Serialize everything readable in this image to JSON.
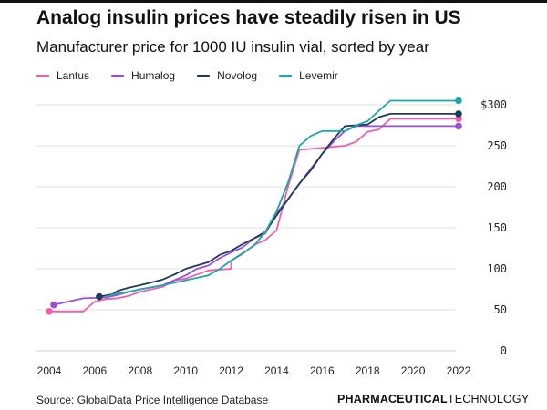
{
  "header": {
    "title": "Analog insulin prices have steadily risen in US",
    "subtitle": "Manufacturer price for 1000 IU insulin vial, sorted by year"
  },
  "footer": {
    "source": "Source: GlobalData Price Intelligence Database",
    "brand_bold": "PHARMACEUTICAL",
    "brand_light": "TECHNOLOGY"
  },
  "chart_data": {
    "type": "line",
    "title": "Analog insulin prices have steadily risen in US",
    "subtitle": "Manufacturer price for 1000 IU insulin vial, sorted by year",
    "xlim": [
      2004,
      2022
    ],
    "ylim": [
      0,
      300
    ],
    "x_ticks": [
      2004,
      2006,
      2008,
      2010,
      2012,
      2014,
      2016,
      2018,
      2020,
      2022
    ],
    "y_ticks": [
      0,
      50,
      100,
      150,
      200,
      250,
      300
    ],
    "y_tick_labels": [
      "0",
      "50",
      "100",
      "150",
      "200",
      "250",
      "$300"
    ],
    "grid": "horizontal",
    "legend_position": "top-left",
    "series": [
      {
        "name": "Lantus",
        "color": "#ee5fae",
        "points": [
          [
            2004,
            48
          ],
          [
            2005.5,
            48
          ],
          [
            2006,
            60
          ],
          [
            2006.5,
            63
          ],
          [
            2007,
            64
          ],
          [
            2007.5,
            67
          ],
          [
            2008,
            72
          ],
          [
            2009,
            78
          ],
          [
            2009.5,
            86
          ],
          [
            2010,
            88
          ],
          [
            2011,
            98
          ],
          [
            2012,
            100
          ],
          [
            2012,
            110
          ],
          [
            2012.5,
            118
          ],
          [
            2013,
            129
          ],
          [
            2013.5,
            135
          ],
          [
            2014,
            147
          ],
          [
            2014.5,
            200
          ],
          [
            2015,
            245
          ],
          [
            2017,
            250
          ],
          [
            2017.5,
            255
          ],
          [
            2018,
            267
          ],
          [
            2018.5,
            270
          ],
          [
            2019,
            283
          ],
          [
            2022,
            283
          ]
        ],
        "end_marker": true,
        "start_marker": true
      },
      {
        "name": "Humalog",
        "color": "#9b4fd6",
        "points": [
          [
            2004.2,
            56
          ],
          [
            2005,
            61
          ],
          [
            2005.5,
            64
          ],
          [
            2006.5,
            65
          ],
          [
            2007,
            68
          ],
          [
            2007.5,
            72
          ],
          [
            2008,
            75
          ],
          [
            2009,
            80
          ],
          [
            2010,
            92
          ],
          [
            2010.5,
            100
          ],
          [
            2011,
            104
          ],
          [
            2011.5,
            113
          ],
          [
            2012,
            120
          ],
          [
            2012.5,
            126
          ],
          [
            2013,
            137
          ],
          [
            2013.5,
            143
          ],
          [
            2014,
            168
          ],
          [
            2014.5,
            185
          ],
          [
            2015.5,
            222
          ],
          [
            2016,
            240
          ],
          [
            2016.5,
            255
          ],
          [
            2017,
            268
          ],
          [
            2017.5,
            274
          ],
          [
            2022,
            274
          ]
        ],
        "end_marker": true,
        "start_marker": true
      },
      {
        "name": "Novolog",
        "color": "#1f3b5c",
        "points": [
          [
            2006.2,
            66
          ],
          [
            2006.8,
            69
          ],
          [
            2007,
            73
          ],
          [
            2007.5,
            77
          ],
          [
            2008,
            80
          ],
          [
            2009,
            87
          ],
          [
            2009.5,
            93
          ],
          [
            2010,
            100
          ],
          [
            2011,
            108
          ],
          [
            2011.5,
            117
          ],
          [
            2012,
            122
          ],
          [
            2012.5,
            130
          ],
          [
            2013,
            137
          ],
          [
            2013.5,
            145
          ],
          [
            2014,
            165
          ],
          [
            2015,
            204
          ],
          [
            2015.5,
            220
          ],
          [
            2016,
            240
          ],
          [
            2016.5,
            258
          ],
          [
            2017,
            274
          ],
          [
            2018,
            276
          ],
          [
            2018.5,
            285
          ],
          [
            2019,
            289
          ],
          [
            2022,
            289
          ]
        ],
        "end_marker": true,
        "start_marker": true
      },
      {
        "name": "Levemir",
        "color": "#1ba8a8",
        "points": [
          [
            2006.5,
            66
          ],
          [
            2007,
            70
          ],
          [
            2007.5,
            72
          ],
          [
            2008,
            75
          ],
          [
            2009,
            80
          ],
          [
            2010,
            86
          ],
          [
            2011,
            92
          ],
          [
            2011.5,
            100
          ],
          [
            2012,
            110
          ],
          [
            2012.5,
            119
          ],
          [
            2013,
            128
          ],
          [
            2013.5,
            145
          ],
          [
            2014,
            170
          ],
          [
            2014.5,
            205
          ],
          [
            2015,
            250
          ],
          [
            2015.5,
            262
          ],
          [
            2016,
            268
          ],
          [
            2017,
            268
          ],
          [
            2017.5,
            275
          ],
          [
            2018,
            280
          ],
          [
            2018.5,
            293
          ],
          [
            2019,
            305
          ],
          [
            2022,
            305
          ]
        ],
        "end_marker": true,
        "start_marker": false
      }
    ]
  }
}
